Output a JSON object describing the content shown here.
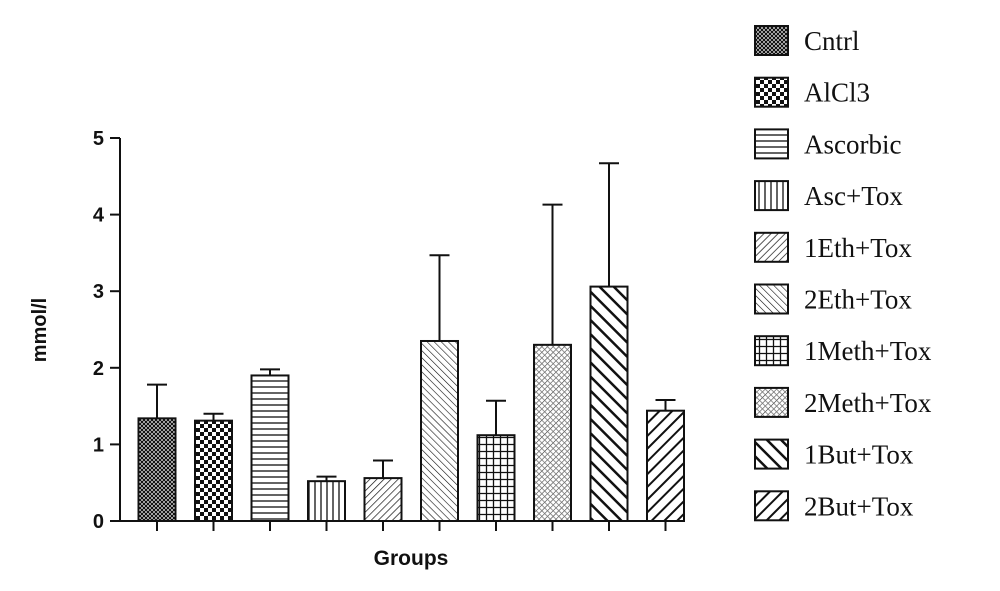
{
  "chart_data": {
    "type": "bar",
    "title": "",
    "xlabel": "Groups",
    "ylabel": "mmol/l",
    "ylim": [
      0,
      5
    ],
    "yticks": [
      "0",
      "1",
      "2",
      "3",
      "4",
      "5"
    ],
    "grid": false,
    "legend_position": "right",
    "categories": [
      "Cntrl",
      "AlCl3",
      "Ascorbic",
      "Asc+Tox",
      "1Eth+Tox",
      "2Eth+Tox",
      "1Meth+Tox",
      "2Meth+Tox",
      "1But+Tox",
      "2But+Tox"
    ],
    "series": [
      {
        "values": [
          1.34,
          1.31,
          1.9,
          0.52,
          0.56,
          2.35,
          1.12,
          2.3,
          3.06,
          1.44
        ],
        "error_upper": [
          0.44,
          0.09,
          0.08,
          0.06,
          0.23,
          1.12,
          0.45,
          1.83,
          1.61,
          0.14
        ]
      }
    ],
    "patterns": [
      "crosshatch-dense",
      "checker",
      "horizontal",
      "vertical",
      "diagonal-fine",
      "diagonal-back",
      "grid",
      "dots",
      "diagonal-thick",
      "diagonal-medium"
    ]
  }
}
